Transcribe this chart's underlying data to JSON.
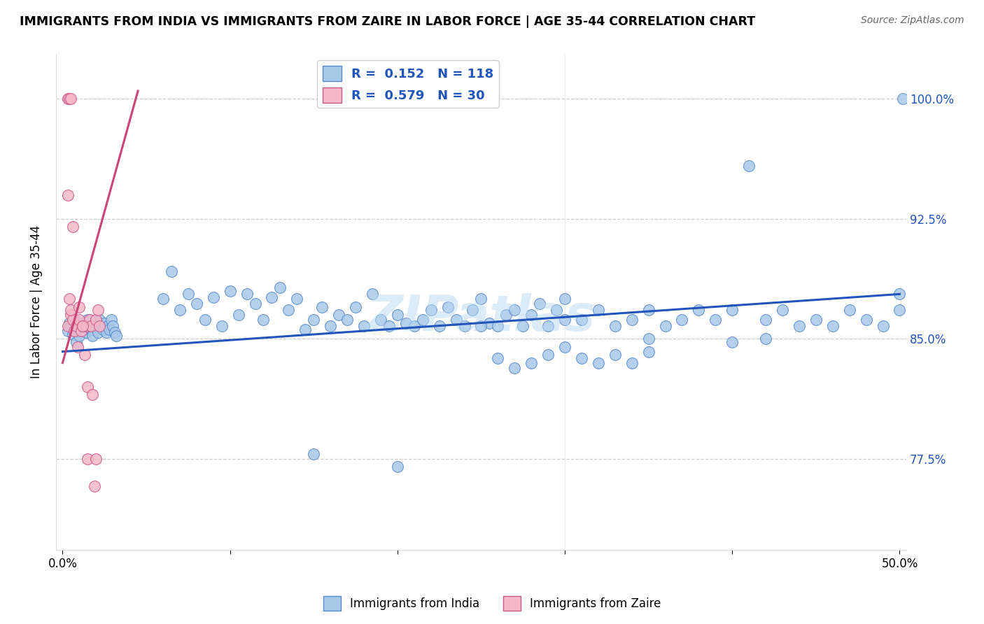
{
  "title": "IMMIGRANTS FROM INDIA VS IMMIGRANTS FROM ZAIRE IN LABOR FORCE | AGE 35-44 CORRELATION CHART",
  "source": "Source: ZipAtlas.com",
  "ylabel": "In Labor Force | Age 35-44",
  "india_R": "0.152",
  "india_N": "118",
  "zaire_R": "0.579",
  "zaire_N": "30",
  "india_color": "#a8c8e8",
  "india_edge_color": "#5588cc",
  "zaire_color": "#f4b8c8",
  "zaire_edge_color": "#cc5588",
  "india_line_color": "#2255bb",
  "zaire_line_color": "#cc4477",
  "legend_text_color": "#2255bb",
  "right_axis_color": "#2255bb",
  "watermark_color": "#b8d8f0",
  "xlim": [
    -0.004,
    0.504
  ],
  "ylim": [
    0.718,
    1.028
  ],
  "yticks": [
    0.775,
    0.85,
    0.925,
    1.0
  ],
  "ytick_labels": [
    "77.5%",
    "85.0%",
    "92.5%",
    "100.0%"
  ],
  "xticks": [
    0.0,
    0.1,
    0.2,
    0.3,
    0.4,
    0.5
  ],
  "xtick_labels": [
    "0.0%",
    "",
    "",
    "",
    "",
    "50.0%"
  ],
  "india_x": [
    0.003,
    0.004,
    0.005,
    0.006,
    0.007,
    0.008,
    0.009,
    0.01,
    0.011,
    0.012,
    0.013,
    0.014,
    0.015,
    0.016,
    0.017,
    0.018,
    0.019,
    0.02,
    0.021,
    0.022,
    0.023,
    0.024,
    0.025,
    0.026,
    0.027,
    0.028,
    0.029,
    0.03,
    0.031,
    0.032,
    0.06,
    0.065,
    0.07,
    0.075,
    0.08,
    0.085,
    0.09,
    0.095,
    0.1,
    0.105,
    0.11,
    0.115,
    0.12,
    0.125,
    0.13,
    0.135,
    0.14,
    0.145,
    0.15,
    0.155,
    0.16,
    0.165,
    0.17,
    0.175,
    0.18,
    0.185,
    0.19,
    0.195,
    0.2,
    0.205,
    0.21,
    0.215,
    0.22,
    0.225,
    0.23,
    0.235,
    0.24,
    0.245,
    0.25,
    0.255,
    0.26,
    0.265,
    0.27,
    0.275,
    0.28,
    0.285,
    0.29,
    0.295,
    0.3,
    0.31,
    0.32,
    0.33,
    0.34,
    0.35,
    0.36,
    0.37,
    0.38,
    0.39,
    0.4,
    0.41,
    0.42,
    0.43,
    0.44,
    0.45,
    0.46,
    0.47,
    0.48,
    0.49,
    0.5,
    0.502,
    0.26,
    0.27,
    0.28,
    0.29,
    0.3,
    0.31,
    0.32,
    0.33,
    0.34,
    0.35,
    0.5,
    0.42,
    0.15,
    0.2,
    0.25,
    0.3,
    0.35,
    0.4
  ],
  "india_y": [
    0.855,
    0.86,
    0.858,
    0.853,
    0.862,
    0.848,
    0.856,
    0.852,
    0.86,
    0.855,
    0.858,
    0.854,
    0.862,
    0.858,
    0.856,
    0.852,
    0.86,
    0.858,
    0.854,
    0.862,
    0.858,
    0.856,
    0.86,
    0.854,
    0.858,
    0.856,
    0.862,
    0.858,
    0.854,
    0.852,
    0.875,
    0.892,
    0.868,
    0.878,
    0.872,
    0.862,
    0.876,
    0.858,
    0.88,
    0.865,
    0.878,
    0.872,
    0.862,
    0.876,
    0.882,
    0.868,
    0.875,
    0.856,
    0.862,
    0.87,
    0.858,
    0.865,
    0.862,
    0.87,
    0.858,
    0.878,
    0.862,
    0.858,
    0.865,
    0.86,
    0.858,
    0.862,
    0.868,
    0.858,
    0.87,
    0.862,
    0.858,
    0.868,
    0.875,
    0.86,
    0.858,
    0.865,
    0.868,
    0.858,
    0.865,
    0.872,
    0.858,
    0.868,
    0.875,
    0.862,
    0.868,
    0.858,
    0.862,
    0.868,
    0.858,
    0.862,
    0.868,
    0.862,
    0.868,
    0.958,
    0.862,
    0.868,
    0.858,
    0.862,
    0.858,
    0.868,
    0.862,
    0.858,
    0.868,
    1.0,
    0.838,
    0.832,
    0.835,
    0.84,
    0.845,
    0.838,
    0.835,
    0.84,
    0.835,
    0.842,
    0.878,
    0.85,
    0.778,
    0.77,
    0.858,
    0.862,
    0.85,
    0.848
  ],
  "zaire_x": [
    0.003,
    0.005,
    0.006,
    0.007,
    0.008,
    0.009,
    0.01,
    0.011,
    0.012,
    0.013,
    0.014,
    0.015,
    0.016,
    0.017,
    0.018,
    0.019,
    0.02,
    0.021,
    0.022,
    0.003,
    0.004,
    0.005,
    0.003,
    0.004,
    0.005,
    0.006,
    0.01,
    0.012,
    0.015,
    0.02
  ],
  "zaire_y": [
    0.858,
    0.865,
    0.862,
    0.855,
    0.858,
    0.845,
    0.862,
    0.855,
    0.858,
    0.84,
    0.858,
    0.82,
    0.862,
    0.858,
    0.815,
    0.758,
    0.862,
    0.868,
    0.858,
    0.94,
    0.875,
    0.868,
    1.0,
    1.0,
    1.0,
    0.92,
    0.87,
    0.858,
    0.775,
    0.775
  ]
}
